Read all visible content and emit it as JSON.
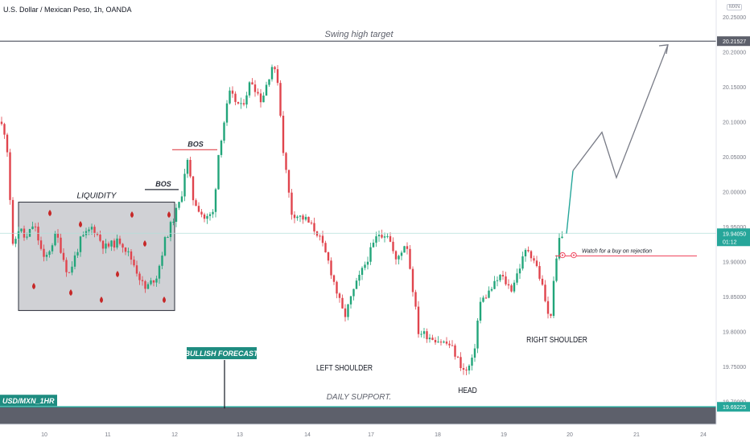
{
  "header": {
    "symbol": "U.S. Dollar / Mexican Peso, 1h, OANDA",
    "currency": "MXN"
  },
  "colors": {
    "up": "#22a57a",
    "down": "#e0444d",
    "line": "#9598a1",
    "price": "#26a69a",
    "target": "#f0445d",
    "text": "#131722",
    "axis": "#787b86"
  },
  "chart_data": {
    "type": "candlestick",
    "yaxis_ticks": [
      "20.25000",
      "20.20000",
      "20.15000",
      "20.10000",
      "20.05000",
      "20.00000",
      "19.95000",
      "19.90000",
      "19.85000",
      "19.80000",
      "19.75000",
      "19.70000"
    ],
    "ylim": [
      19.67,
      20.27
    ],
    "xaxis_ticks": [
      "10",
      "11",
      "12",
      "13",
      "14",
      "17",
      "18",
      "19",
      "20",
      "21",
      "24"
    ],
    "price_labels": {
      "swing_high": "20.21527",
      "current": "19.94050",
      "countdown": "01:12",
      "support": "19.69225"
    },
    "annotations": {
      "swing_high_target": "Swing high target",
      "liquidity": "LIQUIDITY",
      "bos": "BOS",
      "left_shoulder": "LEFT SHOULDER",
      "head": "HEAD",
      "right_shoulder": "RIGHT SHOULDER",
      "watch": "Watch for   a buy on rejection",
      "bullish_forecast": "BULLISH FORECAST",
      "daily_support": "DAILY SUPPORT.",
      "pair_label": "USD/MXN_1HR"
    },
    "forecast_path": [
      [
        19.908,
        19.94
      ],
      [
        19.954,
        20.03
      ],
      [
        19.922,
        20.085
      ],
      [
        19.945,
        20.02
      ],
      [
        19.97,
        20.21
      ]
    ],
    "key_points": [
      {
        "label": "liquidity_zone",
        "range": [
          19.83,
          19.985
        ]
      },
      {
        "label": "bos_1",
        "value": 20.003
      },
      {
        "label": "bos_2",
        "value": 20.06
      },
      {
        "label": "left_shoulder_low",
        "value": 19.77
      },
      {
        "label": "head_low",
        "value": 19.74
      },
      {
        "label": "right_shoulder_low",
        "value": 19.8
      },
      {
        "label": "swing_high",
        "value": 20.21527
      }
    ]
  }
}
